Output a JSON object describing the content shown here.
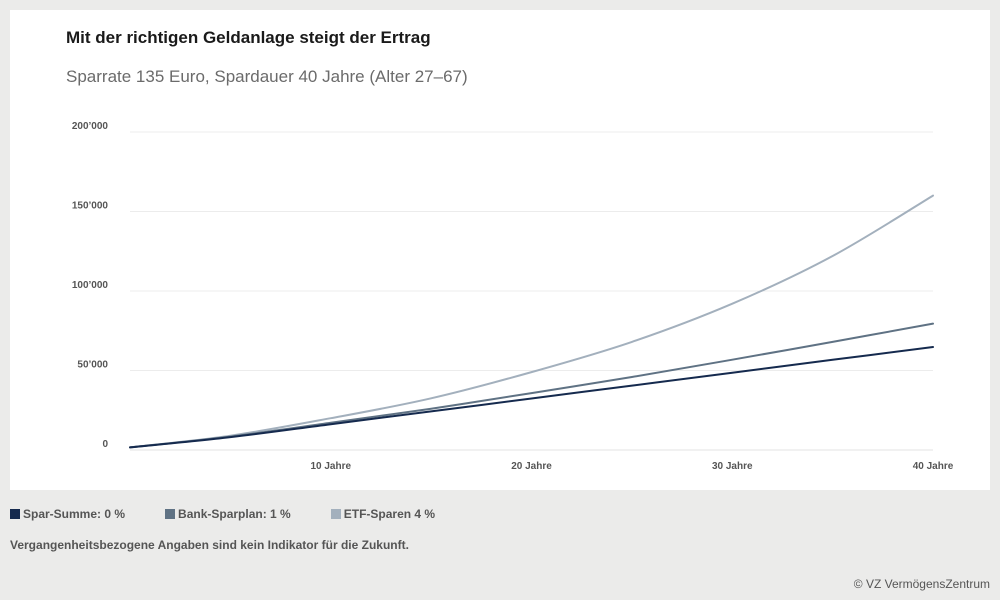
{
  "header": {
    "title": "Mit der richtigen Geldanlage steigt der Ertrag",
    "subtitle": "Sparrate 135 Euro, Spardauer 40 Jahre (Alter 27–67)"
  },
  "chart_data": {
    "type": "line",
    "title": "Mit der richtigen Geldanlage steigt der Ertrag",
    "subtitle": "Sparrate 135 Euro, Spardauer 40 Jahre (Alter 27–67)",
    "x_ticks": [
      {
        "value": 10,
        "label": "10 Jahre"
      },
      {
        "value": 20,
        "label": "20 Jahre"
      },
      {
        "value": 30,
        "label": "30 Jahre"
      },
      {
        "value": 40,
        "label": "40 Jahre"
      }
    ],
    "y_ticks": [
      {
        "value": 0,
        "label": "0"
      },
      {
        "value": 50000,
        "label": "50’000"
      },
      {
        "value": 100000,
        "label": "100’000"
      },
      {
        "value": 150000,
        "label": "150’000"
      },
      {
        "value": 200000,
        "label": "200’000"
      }
    ],
    "xlim": [
      0,
      40
    ],
    "ylim": [
      0,
      200000
    ],
    "grid": true,
    "legend_position": "bottom-left",
    "x": [
      0,
      5,
      10,
      15,
      20,
      25,
      30,
      35,
      40
    ],
    "series": [
      {
        "name": "Spar-Summe: 0 %",
        "color": "#152a4e",
        "values": [
          1620,
          8100,
          16200,
          24300,
          32400,
          40500,
          48600,
          56700,
          64800
        ]
      },
      {
        "name": "Bank-Sparplan: 1 %",
        "color": "#5f7284",
        "values": [
          1630,
          8400,
          17100,
          26000,
          35800,
          45900,
          56800,
          68000,
          79500
        ]
      },
      {
        "name": "ETF-Sparen 4 %",
        "color": "#a3b0bd",
        "values": [
          1650,
          9000,
          20000,
          32500,
          49000,
          68000,
          92000,
          122000,
          160000
        ]
      }
    ]
  },
  "legend": {
    "items": [
      {
        "label": "Spar-Summe: 0 %",
        "color": "#152a4e"
      },
      {
        "label": "Bank-Sparplan: 1 %",
        "color": "#5f7284"
      },
      {
        "label": "ETF-Sparen 4 %",
        "color": "#a3b0bd"
      }
    ]
  },
  "footer": {
    "note": "Vergangenheitsbezogene Angaben sind kein Indikator für die Zukunft.",
    "copyright": "© VZ VermögensZentrum"
  }
}
